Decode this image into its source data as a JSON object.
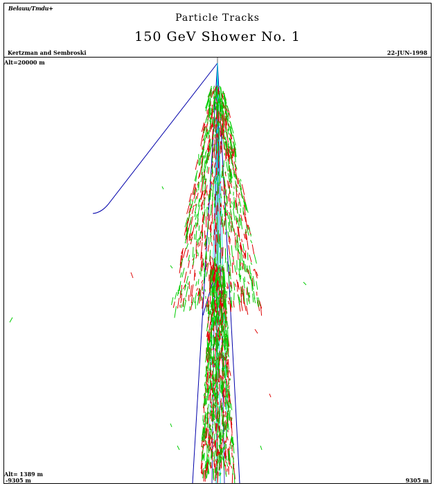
{
  "header": {
    "logo_text": "Bełauu/Tmdu+",
    "title": "Particle Tracks",
    "subtitle": "150 GeV Shower No. 1",
    "authors": "Kertzman and Sembroski",
    "date": "22-JUN-1998"
  },
  "axes": {
    "alt_top_label": "Alt=20000 m",
    "alt_bottom_label": "Alt= 1389 m",
    "x_min_label": "-9305 m",
    "x_max_label": "9305 m"
  },
  "colors": {
    "frame": "#000000",
    "axis_line": "#000000",
    "primary_track": "#0000aa",
    "electron_track": "#dd0000",
    "positron_track": "#00cc00",
    "muon_track": "#00dddd"
  }
}
